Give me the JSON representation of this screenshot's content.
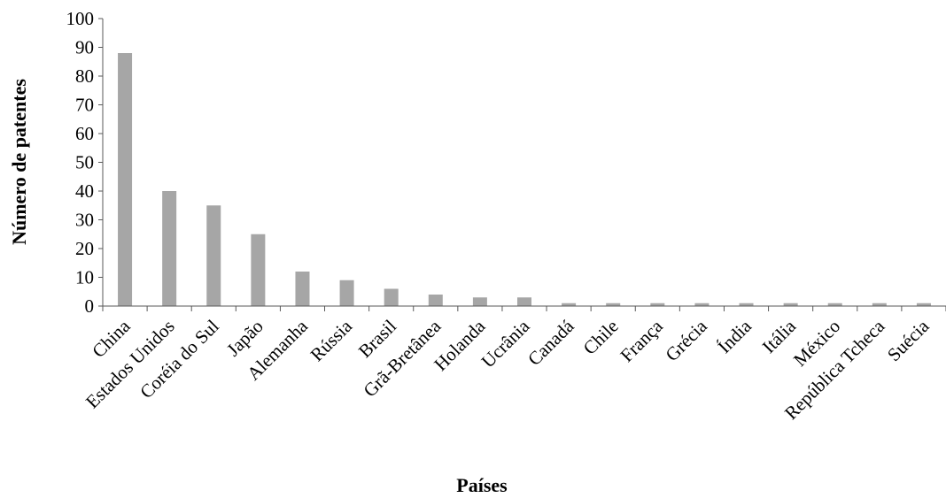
{
  "chart_data": {
    "type": "bar",
    "title": "",
    "xlabel": "Países",
    "ylabel": "Número de patentes",
    "ylim": [
      0,
      100
    ],
    "yticks": [
      0,
      10,
      20,
      30,
      40,
      50,
      60,
      70,
      80,
      90,
      100
    ],
    "grid": false,
    "bar_color": "#a6a6a6",
    "categories": [
      "China",
      "Estados Unidos",
      "Coréia do Sul",
      "Japão",
      "Alemanha",
      "Rússia",
      "Brasil",
      "Grã-Bretânea",
      "Holanda",
      "Ucrânia",
      "Canadá",
      "Chile",
      "França",
      "Grécia",
      "Índia",
      "Itália",
      "México",
      "República Tcheca",
      "Suécia"
    ],
    "values": [
      88,
      40,
      35,
      25,
      12,
      9,
      6,
      4,
      3,
      3,
      1,
      1,
      1,
      1,
      1,
      1,
      1,
      1,
      1
    ]
  }
}
